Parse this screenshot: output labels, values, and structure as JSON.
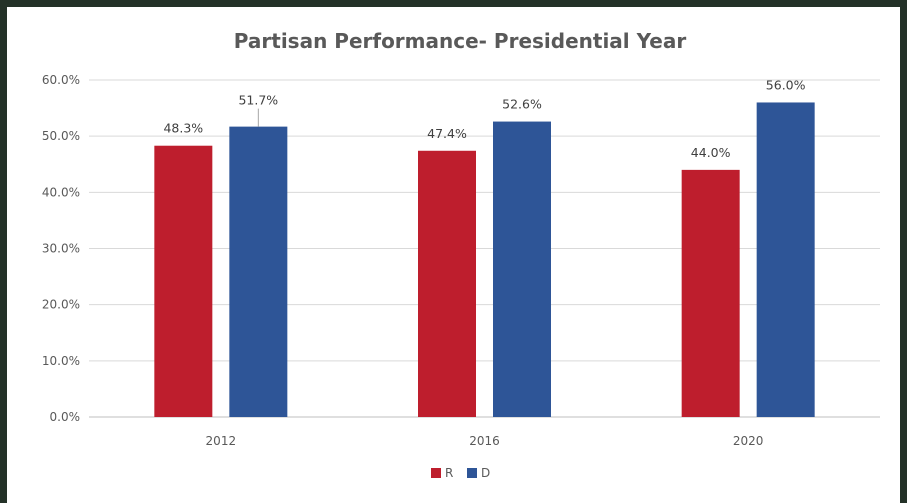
{
  "chart_data": {
    "type": "bar",
    "title": "Partisan Performance- Presidential Year",
    "xlabel": "",
    "ylabel": "",
    "categories": [
      "2012",
      "2016",
      "2020"
    ],
    "series": [
      {
        "name": "R",
        "values": [
          48.3,
          47.4,
          44.0
        ],
        "color": "#be1e2d",
        "labels": [
          "48.3%",
          "47.4%",
          "44.0%"
        ]
      },
      {
        "name": "D",
        "values": [
          51.7,
          52.6,
          56.0
        ],
        "color": "#2e5597",
        "labels": [
          "51.7%",
          "52.6%",
          "56.0%"
        ]
      }
    ],
    "ylim": [
      0,
      60
    ],
    "yticks": [
      0,
      10,
      20,
      30,
      40,
      50,
      60
    ],
    "ytick_labels": [
      "0.0%",
      "10.0%",
      "20.0%",
      "30.0%",
      "40.0%",
      "50.0%",
      "60.0%"
    ],
    "grid": true,
    "legend_position": "bottom-center"
  }
}
